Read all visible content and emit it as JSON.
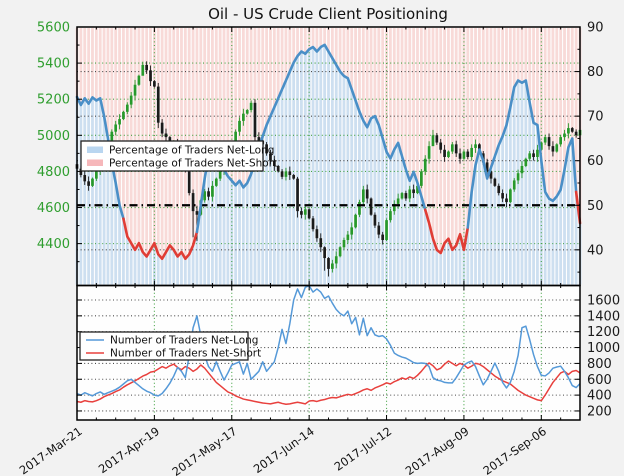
{
  "title": "Oil - US Crude Client Positioning",
  "colors": {
    "figure_bg": "#f2f2f2",
    "panel_bg": "#fefefe",
    "frame": "#000000",
    "left_axis_label": "#2f9e2f",
    "right_axis_label": "#1a1a1a",
    "grid_green": "#44a344",
    "grid_dark": "#4a4a4a",
    "up_candle": "#28992b",
    "down_candle": "#1b1b1b",
    "pct_long_line": "#4a8fc7",
    "pct_short_line": "#e03d35",
    "count_long_line": "#5599d8",
    "count_short_line": "#e8403d",
    "fill_long_stripe": "#cddff0",
    "fill_short_stripe": "#f8dad8",
    "legend_patch_long": "#b9d6f0",
    "legend_patch_short": "#f6b7ba",
    "midline": "#000000"
  },
  "top_panel": {
    "left_axis": {
      "ticks": [
        5600,
        5400,
        5200,
        5000,
        4800,
        4600,
        4400
      ],
      "minor_ticks": [
        5500,
        5300,
        5100,
        4900,
        4700,
        4500,
        4300
      ],
      "min": 4168,
      "max": 5600
    },
    "right_axis": {
      "ticks": [
        90,
        80,
        70,
        60,
        50,
        40
      ],
      "minor_ticks": [
        85,
        75,
        65,
        55,
        45,
        35
      ],
      "min": 32,
      "max": 90
    },
    "legend": [
      "Percentage of Traders Net-Long",
      "Percentage of Traders Net-Short"
    ],
    "midline_value": 50
  },
  "bottom_panel": {
    "right_axis": {
      "ticks": [
        1600,
        1400,
        1200,
        1000,
        800,
        600,
        400,
        200
      ],
      "min": 86,
      "max": 1783
    },
    "legend": [
      "Number of Traders Net-Long",
      "Number of Traders Net-Short"
    ]
  },
  "x_axis": {
    "tick_labels": [
      "2017-Mar-21",
      "2017-Apr-19",
      "2017-May-17",
      "2017-Jun-14",
      "2017-Jul-12",
      "2017-Aug-09",
      "2017-Sep-06"
    ],
    "tick_indices": [
      0,
      20,
      40,
      60,
      80,
      100,
      120
    ],
    "minor_every": 5,
    "points": 131
  },
  "chart_data": {
    "type": "mixed",
    "description": "Top panel: daily price candlesticks (left axis, green=up/black=down) with percentage-of-traders net-long line (right axis, blue above ~46.5 / red below) over striped blue (net-long share) and pink (net-short share) background fills, dash-dot line at 50. Bottom panel: number of traders net-long (blue) and net-short (red).",
    "price_candles": {
      "first_open": 4840,
      "closes": [
        4815,
        4780,
        4745,
        4720,
        4760,
        4800,
        4850,
        4905,
        4960,
        5020,
        5060,
        5090,
        5130,
        5170,
        5220,
        5280,
        5330,
        5390,
        5360,
        5300,
        5270,
        5070,
        5010,
        4990,
        4930,
        4960,
        4940,
        4900,
        4800,
        4680,
        4580,
        4560,
        4640,
        4690,
        4660,
        4720,
        4760,
        4800,
        4840,
        4900,
        4960,
        5020,
        5080,
        5120,
        5140,
        5180,
        4990,
        4970,
        4950,
        4900,
        4860,
        4830,
        4800,
        4770,
        4800,
        4780,
        4760,
        4580,
        4560,
        4590,
        4540,
        4480,
        4430,
        4380,
        4320,
        4260,
        4290,
        4330,
        4380,
        4420,
        4450,
        4490,
        4560,
        4630,
        4700,
        4650,
        4560,
        4500,
        4450,
        4420,
        4530,
        4580,
        4620,
        4650,
        4680,
        4650,
        4700,
        4680,
        4720,
        4800,
        4870,
        4940,
        5000,
        4960,
        4920,
        4880,
        4910,
        4950,
        4900,
        4870,
        4910,
        4880,
        4930,
        4950,
        4900,
        4850,
        4800,
        4760,
        4720,
        4680,
        4650,
        4630,
        4700,
        4750,
        4790,
        4830,
        4870,
        4900,
        4880,
        4920,
        4960,
        4990,
        4940,
        4910,
        4950,
        4990,
        5010,
        5040,
        5020,
        5000,
        5030
      ],
      "wick_overrides": {
        "17": [
          5408,
          5345
        ],
        "21": [
          5290,
          5040
        ],
        "30": [
          4700,
          4435
        ],
        "31": [
          4610,
          4415
        ],
        "57": [
          4770,
          4545
        ],
        "64": [
          4385,
          4250
        ],
        "65": [
          4325,
          4218
        ],
        "79": [
          4465,
          4395
        ],
        "92": [
          5030,
          4950
        ],
        "130": [
          5082,
          4988
        ]
      }
    },
    "pct_net_long": [
      74.3,
      72.5,
      74.0,
      72.8,
      74.2,
      73.5,
      74.0,
      70.0,
      65.0,
      59.5,
      55.0,
      50.0,
      47.0,
      43.0,
      41.5,
      40.0,
      41.5,
      39.5,
      38.5,
      40.0,
      41.5,
      39.0,
      38.0,
      39.5,
      41.0,
      40.0,
      38.5,
      39.5,
      38.0,
      39.0,
      41.0,
      44.0,
      50.0,
      56.0,
      61.0,
      63.0,
      61.0,
      59.5,
      58.0,
      56.5,
      55.5,
      54.5,
      55.5,
      54.0,
      55.0,
      57.0,
      60.0,
      63.0,
      65.5,
      68.0,
      70.0,
      72.0,
      74.0,
      76.0,
      78.0,
      80.0,
      82.0,
      83.5,
      84.5,
      84.0,
      85.0,
      85.5,
      84.5,
      85.5,
      86.0,
      84.5,
      83.0,
      81.5,
      80.0,
      79.0,
      78.5,
      76.0,
      73.5,
      71.0,
      69.0,
      67.5,
      69.5,
      70.0,
      68.0,
      65.0,
      62.0,
      60.5,
      62.5,
      64.0,
      61.0,
      58.0,
      55.5,
      57.5,
      55.0,
      52.0,
      49.0,
      46.0,
      42.5,
      40.0,
      39.3,
      41.5,
      42.5,
      40.0,
      41.0,
      43.5,
      40.0,
      45.0,
      53.0,
      59.0,
      62.5,
      60.0,
      56.0,
      58.5,
      61.0,
      63.5,
      65.5,
      68.0,
      72.0,
      76.5,
      78.0,
      77.5,
      78.0,
      73.0,
      68.5,
      68.0,
      60.0,
      53.0,
      51.5,
      51.0,
      52.0,
      53.5,
      58.0,
      63.0,
      65.0,
      53.0,
      46.0
    ],
    "pct_red_threshold": 46.5,
    "net_long_count": [
      420,
      400,
      430,
      410,
      390,
      420,
      440,
      410,
      430,
      450,
      470,
      500,
      540,
      580,
      600,
      560,
      520,
      480,
      450,
      430,
      400,
      390,
      420,
      480,
      550,
      640,
      750,
      700,
      620,
      900,
      1250,
      1400,
      1150,
      900,
      760,
      700,
      820,
      700,
      590,
      680,
      780,
      800,
      820,
      665,
      800,
      600,
      650,
      700,
      820,
      700,
      760,
      820,
      1000,
      1230,
      1050,
      1300,
      1600,
      1740,
      1630,
      1760,
      1780,
      1700,
      1740,
      1700,
      1620,
      1650,
      1560,
      1480,
      1430,
      1400,
      1460,
      1300,
      1380,
      1160,
      1370,
      1150,
      1250,
      1160,
      1140,
      1150,
      1110,
      1030,
      930,
      900,
      880,
      867,
      840,
      810,
      800,
      805,
      800,
      760,
      620,
      590,
      580,
      560,
      555,
      554,
      620,
      700,
      780,
      810,
      830,
      760,
      640,
      530,
      600,
      700,
      805,
      700,
      560,
      490,
      560,
      700,
      900,
      1250,
      1270,
      1100,
      910,
      760,
      650,
      642,
      680,
      740,
      755,
      765,
      700,
      620,
      520,
      495,
      545
    ],
    "net_short_count": [
      320,
      310,
      330,
      320,
      315,
      330,
      350,
      380,
      400,
      420,
      445,
      465,
      500,
      530,
      555,
      580,
      610,
      640,
      660,
      690,
      700,
      730,
      760,
      740,
      770,
      790,
      750,
      720,
      760,
      740,
      700,
      730,
      780,
      740,
      680,
      620,
      560,
      520,
      480,
      440,
      420,
      390,
      370,
      350,
      340,
      330,
      320,
      310,
      300,
      295,
      290,
      300,
      310,
      295,
      285,
      290,
      300,
      310,
      300,
      290,
      325,
      330,
      320,
      335,
      345,
      360,
      370,
      365,
      380,
      395,
      410,
      400,
      420,
      440,
      465,
      480,
      460,
      490,
      510,
      530,
      555,
      540,
      570,
      590,
      617,
      600,
      630,
      610,
      650,
      700,
      760,
      806,
      770,
      718,
      740,
      790,
      830,
      800,
      770,
      800,
      780,
      740,
      766,
      800,
      790,
      760,
      720,
      680,
      640,
      610,
      580,
      560,
      540,
      500,
      460,
      430,
      400,
      380,
      360,
      340,
      330,
      400,
      480,
      560,
      620,
      680,
      700,
      660,
      700,
      710,
      680
    ]
  }
}
